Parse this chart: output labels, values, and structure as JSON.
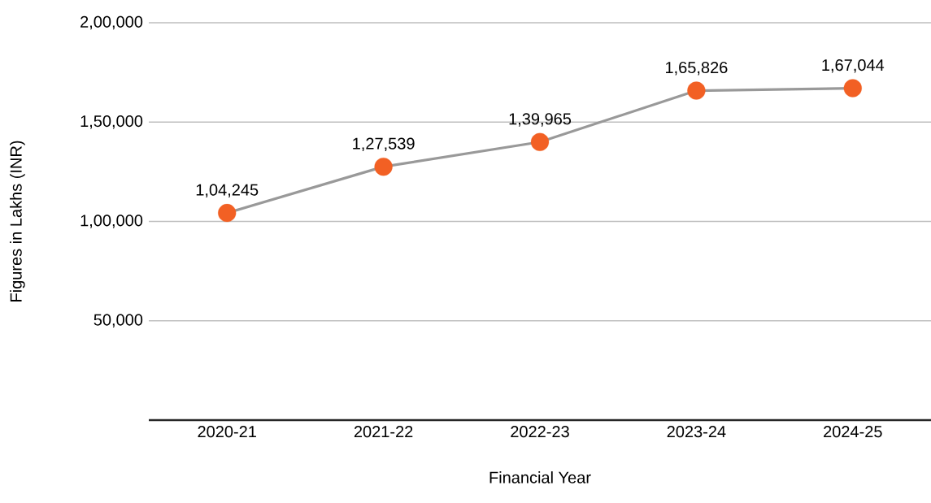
{
  "chart_data": {
    "type": "line",
    "xlabel": "Financial Year",
    "ylabel": "Figures in Lakhs (INR)",
    "categories": [
      "2020-21",
      "2021-22",
      "2022-23",
      "2023-24",
      "2024-25"
    ],
    "series": [
      {
        "color": "#999999",
        "values": [
          104245,
          127539,
          139965,
          165826,
          167044
        ],
        "value_labels": [
          "1,04,245",
          "1,27,539",
          "1,39,965",
          "1,65,826",
          "1,67,044"
        ]
      }
    ],
    "ylim": [
      0,
      200000
    ],
    "yticks": [
      {
        "value": 50000,
        "label": "50,000"
      },
      {
        "value": 100000,
        "label": "1,00,000"
      },
      {
        "value": 150000,
        "label": "1,50,000"
      },
      {
        "value": 200000,
        "label": "2,00,000"
      }
    ],
    "grid": "y",
    "marker": "circle",
    "line_style": "solid"
  }
}
